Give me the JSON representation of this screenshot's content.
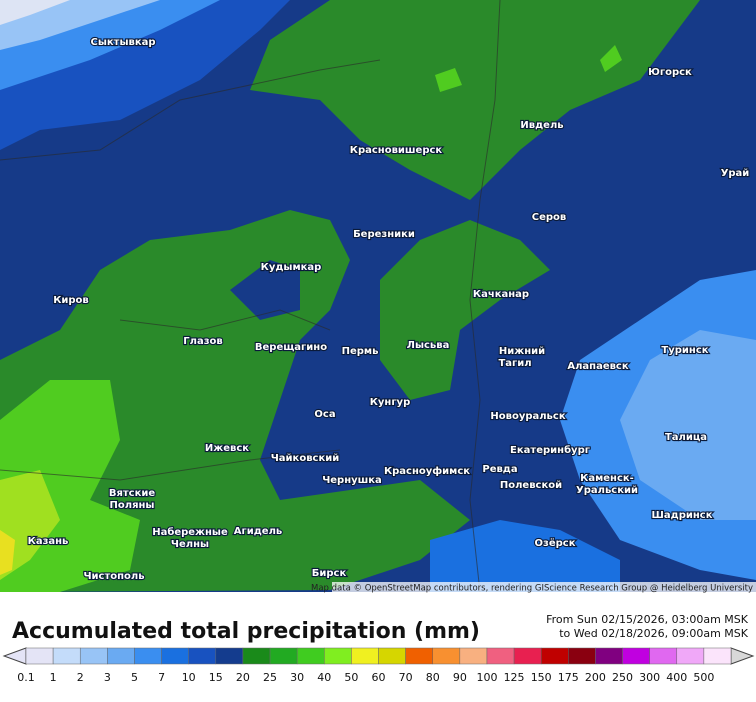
{
  "map": {
    "cities": [
      "Сыктывкар",
      "Югорск",
      "Ивдель",
      "Красновишерск",
      "Урай",
      "Серов",
      "Березники",
      "Кудымкар",
      "Киров",
      "Качканар",
      "Глазов",
      "Верещагино",
      "Пермь",
      "Лысьва",
      "Нижний",
      "Тагил",
      "Алапаевск",
      "Туринск",
      "Оса",
      "Кунгур",
      "Новоуральск",
      "Ижевск",
      "Чайковский",
      "Екатеринбург",
      "Талица",
      "Красноуфимск",
      "Ревда",
      "Чернушка",
      "Вятские",
      "Поляны",
      "Полевской",
      "Каменск-",
      "Уральский",
      "Набережные",
      "Челны",
      "Агидель",
      "Шадринск",
      "Казань",
      "Озёрск",
      "Чистополь",
      "Бирск"
    ],
    "attribution": "Map data © OpenStreetMap contributors, rendering GIScience Research Group @ Heidelberg University"
  },
  "footer": {
    "title": "Accumulated total precipitation (mm)",
    "from": "From Sun 02/15/2026, 03:00am MSK",
    "to": "to Wed 02/18/2026, 09:00am MSK"
  },
  "legend": {
    "labels": [
      0.1,
      1,
      2,
      3,
      5,
      7,
      10,
      15,
      20,
      25,
      30,
      40,
      50,
      60,
      70,
      80,
      90,
      100,
      125,
      150,
      175,
      200,
      250,
      300,
      400,
      500
    ],
    "colors": [
      "#e4e4f6",
      "#c4dcfa",
      "#98c4f6",
      "#6aaaf2",
      "#3a8ef0",
      "#1a70e0",
      "#1852c0",
      "#143c8e",
      "#1a8a1a",
      "#22aa22",
      "#40cc20",
      "#80ee20",
      "#f0f020",
      "#d6d600",
      "#f06000",
      "#f89030",
      "#f8b080",
      "#f06080",
      "#e82050",
      "#c00000",
      "#8a0010",
      "#800080",
      "#c000e0",
      "#e068f0",
      "#f0a8f8",
      "#fbe4fb"
    ]
  }
}
